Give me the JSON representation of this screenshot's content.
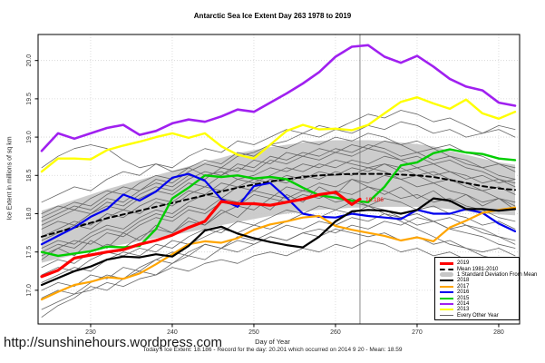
{
  "title": "Antarctic Sea Ice Extent Day 263 1978 to 2019",
  "url": "http://sunshinehours.wordpress.com",
  "xlabel": "Day of Year",
  "ylabel": "Ice Extent in millions of sq km",
  "caption": "Today's Ice Extent: 18.186  - Record for the day: 20.201 which occurred on 2014 9 20  - Mean: 18.59",
  "today_point_label": "18.186",
  "colors": {
    "y2019": "#ff0000",
    "mean": "#000000",
    "band": "#c6c6c6",
    "y2018": "#000000",
    "y2017": "#ffa500",
    "y2016": "#0000ee",
    "y2015": "#00cd00",
    "y2014": "#a020f0",
    "y2013": "#ffff00",
    "other": "#676767",
    "grid": "#d4d4d4",
    "marker": "#8a8a8a",
    "axis": "#000000"
  },
  "legend": {
    "items": [
      {
        "label": "2019",
        "style": "thick",
        "color": "#ff0000"
      },
      {
        "label": "Mean 1981-2010",
        "style": "dashed",
        "color": "#000000"
      },
      {
        "label": "1 Standard Deviation From Mean",
        "style": "band",
        "color": "#c6c6c6"
      },
      {
        "label": "2018",
        "style": "line",
        "color": "#000000"
      },
      {
        "label": "2017",
        "style": "line",
        "color": "#ffa500"
      },
      {
        "label": "2016",
        "style": "line",
        "color": "#0000ee"
      },
      {
        "label": "2015",
        "style": "line",
        "color": "#00cd00"
      },
      {
        "label": "2014",
        "style": "line",
        "color": "#a020f0"
      },
      {
        "label": "2013",
        "style": "line",
        "color": "#ffff00"
      },
      {
        "label": "Every Other Year",
        "style": "thin",
        "color": "#676767"
      }
    ]
  },
  "chart_data": {
    "type": "line",
    "title": "Antarctic Sea Ice Extent Day 263 1978 to 2019",
    "xlabel": "Day of Year",
    "ylabel": "Ice Extent in millions of sq km",
    "xlim": [
      223.56,
      282.56
    ],
    "ylim": [
      16.56,
      20.34
    ],
    "xticks": [
      230,
      240,
      250,
      260,
      270,
      280
    ],
    "yticks": [
      17.0,
      17.5,
      18.0,
      18.5,
      19.0,
      19.5,
      20.0
    ],
    "grid": true,
    "marker_day": 263,
    "x": [
      224,
      226,
      228,
      230,
      232,
      234,
      236,
      238,
      240,
      242,
      244,
      246,
      248,
      250,
      252,
      254,
      256,
      258,
      260,
      262,
      264,
      266,
      268,
      270,
      272,
      274,
      276,
      278,
      280,
      282
    ],
    "band": {
      "name": "1 Standard Deviation From Mean",
      "upper": [
        18.04,
        18.11,
        18.18,
        18.25,
        18.32,
        18.38,
        18.44,
        18.5,
        18.56,
        18.62,
        18.68,
        18.73,
        18.79,
        18.83,
        18.87,
        18.9,
        18.93,
        18.95,
        18.96,
        18.96,
        18.96,
        18.95,
        18.93,
        18.91,
        18.88,
        18.82,
        18.77,
        18.72,
        18.67,
        18.64
      ],
      "lower": [
        17.36,
        17.41,
        17.46,
        17.51,
        17.56,
        17.6,
        17.64,
        17.68,
        17.72,
        17.76,
        17.8,
        17.85,
        17.89,
        17.93,
        17.97,
        18.0,
        18.03,
        18.05,
        18.06,
        18.08,
        18.08,
        18.09,
        18.09,
        18.09,
        18.08,
        18.06,
        18.03,
        18.0,
        17.99,
        17.98
      ]
    },
    "series": [
      {
        "name": "Mean 1981-2010",
        "color": "#000000",
        "width": 2,
        "dash": "5,4",
        "values": [
          17.7,
          17.76,
          17.82,
          17.88,
          17.94,
          17.99,
          18.04,
          18.09,
          18.14,
          18.19,
          18.24,
          18.29,
          18.34,
          18.38,
          18.42,
          18.45,
          18.48,
          18.5,
          18.51,
          18.52,
          18.52,
          18.52,
          18.51,
          18.5,
          18.48,
          18.44,
          18.4,
          18.36,
          18.33,
          18.31
        ]
      },
      {
        "name": "2013",
        "color": "#ffff00",
        "width": 2.4,
        "values": [
          18.55,
          18.72,
          18.72,
          18.71,
          18.83,
          18.89,
          18.94,
          19.0,
          19.05,
          18.99,
          19.05,
          18.88,
          18.77,
          18.72,
          18.9,
          19.08,
          19.16,
          19.1,
          19.11,
          19.09,
          19.16,
          19.31,
          19.46,
          19.52,
          19.44,
          19.37,
          19.49,
          19.31,
          19.24,
          19.33
        ]
      },
      {
        "name": "2014",
        "color": "#a020f0",
        "width": 2.6,
        "values": [
          18.82,
          19.05,
          18.98,
          19.05,
          19.12,
          19.16,
          19.03,
          19.08,
          19.18,
          19.23,
          19.2,
          19.27,
          19.36,
          19.33,
          19.45,
          19.57,
          19.7,
          19.85,
          20.05,
          20.18,
          20.2,
          20.05,
          19.97,
          20.06,
          19.92,
          19.76,
          19.66,
          19.61,
          19.45,
          19.41
        ]
      },
      {
        "name": "2015",
        "color": "#00cd00",
        "width": 2.4,
        "values": [
          17.5,
          17.45,
          17.48,
          17.51,
          17.57,
          17.56,
          17.58,
          17.8,
          18.2,
          18.34,
          18.5,
          18.48,
          18.5,
          18.46,
          18.48,
          18.45,
          18.34,
          18.24,
          18.21,
          18.17,
          18.15,
          18.35,
          18.63,
          18.67,
          18.79,
          18.84,
          18.8,
          18.78,
          18.72,
          18.7
        ]
      },
      {
        "name": "2016",
        "color": "#0000ee",
        "width": 2.2,
        "values": [
          17.6,
          17.71,
          17.82,
          17.96,
          18.06,
          18.25,
          18.17,
          18.29,
          18.47,
          18.52,
          18.43,
          18.19,
          18.09,
          18.36,
          18.4,
          18.21,
          18.0,
          17.96,
          17.95,
          18.0,
          17.97,
          17.95,
          17.93,
          18.05,
          18.0,
          18.0,
          18.06,
          18.01,
          17.87,
          17.77
        ]
      },
      {
        "name": "2017",
        "color": "#ffa500",
        "width": 2.2,
        "values": [
          16.88,
          16.98,
          17.07,
          17.11,
          17.17,
          17.15,
          17.22,
          17.34,
          17.47,
          17.6,
          17.64,
          17.62,
          17.68,
          17.79,
          17.86,
          17.9,
          17.95,
          17.97,
          17.84,
          17.79,
          17.75,
          17.71,
          17.65,
          17.69,
          17.64,
          17.82,
          17.91,
          18.01,
          18.05,
          18.08
        ]
      },
      {
        "name": "2018",
        "color": "#000000",
        "width": 2.2,
        "values": [
          17.07,
          17.16,
          17.25,
          17.31,
          17.4,
          17.44,
          17.43,
          17.47,
          17.44,
          17.58,
          17.78,
          17.83,
          17.74,
          17.68,
          17.63,
          17.59,
          17.56,
          17.7,
          17.9,
          18.03,
          18.05,
          18.04,
          18.0,
          18.05,
          18.2,
          18.17,
          18.06,
          18.06,
          18.04,
          18.06
        ]
      },
      {
        "name": "2019",
        "color": "#ff0000",
        "width": 3.2,
        "x": [
          224,
          226,
          228,
          230,
          232,
          234,
          236,
          238,
          240,
          242,
          244,
          246,
          248,
          250,
          252,
          254,
          256,
          258,
          260,
          262,
          263
        ],
        "values": [
          17.18,
          17.26,
          17.42,
          17.46,
          17.5,
          17.53,
          17.6,
          17.65,
          17.72,
          17.82,
          17.9,
          18.16,
          18.13,
          18.13,
          18.11,
          18.15,
          18.19,
          18.25,
          18.28,
          18.12,
          18.19
        ]
      }
    ],
    "background_series": {
      "name": "Every Other Year",
      "color": "#676767",
      "width": 0.8,
      "lines": [
        [
          16.75,
          16.85,
          16.95,
          17.0,
          17.1,
          17.05,
          17.15,
          17.2,
          17.3,
          17.25,
          17.35,
          17.4,
          17.35,
          17.45,
          17.5,
          17.45,
          17.55,
          17.5,
          17.6,
          17.55,
          17.65,
          17.6,
          17.5,
          17.55,
          17.45,
          17.5,
          17.4,
          17.35,
          17.3,
          17.25
        ],
        [
          16.9,
          17.0,
          16.95,
          17.1,
          17.2,
          17.15,
          17.3,
          17.4,
          17.35,
          17.5,
          17.6,
          17.55,
          17.7,
          17.65,
          17.75,
          17.85,
          17.8,
          17.9,
          17.85,
          17.95,
          17.9,
          18.0,
          17.95,
          17.85,
          17.9,
          17.8,
          17.75,
          17.7,
          17.6,
          17.55
        ],
        [
          17.1,
          17.2,
          17.3,
          17.25,
          17.4,
          17.5,
          17.45,
          17.6,
          17.55,
          17.7,
          17.8,
          17.75,
          17.9,
          17.85,
          17.95,
          18.05,
          18.0,
          18.1,
          18.05,
          18.15,
          18.1,
          18.2,
          18.15,
          18.05,
          18.1,
          18.0,
          17.95,
          17.85,
          17.9,
          17.8
        ],
        [
          17.3,
          17.4,
          17.35,
          17.5,
          17.6,
          17.55,
          17.7,
          17.8,
          17.75,
          17.9,
          17.85,
          18.0,
          18.1,
          18.05,
          18.2,
          18.15,
          18.25,
          18.2,
          18.3,
          18.25,
          18.35,
          18.3,
          18.2,
          18.25,
          18.15,
          18.2,
          18.1,
          18.05,
          17.95,
          17.9
        ],
        [
          17.45,
          17.55,
          17.65,
          17.6,
          17.75,
          17.7,
          17.85,
          17.95,
          17.9,
          18.05,
          18.0,
          18.15,
          18.1,
          18.25,
          18.2,
          18.35,
          18.3,
          18.4,
          18.35,
          18.45,
          18.4,
          18.5,
          18.45,
          18.35,
          18.4,
          18.3,
          18.25,
          18.15,
          18.2,
          18.1
        ],
        [
          17.55,
          17.65,
          17.6,
          17.75,
          17.85,
          17.8,
          17.95,
          18.05,
          18.0,
          18.15,
          18.25,
          18.2,
          18.35,
          18.3,
          18.45,
          18.4,
          18.5,
          18.45,
          18.55,
          18.5,
          18.6,
          18.55,
          18.45,
          18.5,
          18.4,
          18.45,
          18.35,
          18.3,
          18.2,
          18.15
        ],
        [
          17.65,
          17.75,
          17.85,
          17.8,
          17.95,
          18.05,
          18.0,
          18.15,
          18.1,
          18.25,
          18.35,
          18.3,
          18.45,
          18.4,
          18.5,
          18.6,
          18.55,
          18.65,
          18.6,
          18.7,
          18.65,
          18.75,
          18.7,
          18.6,
          18.65,
          18.55,
          18.5,
          18.4,
          18.45,
          18.35
        ],
        [
          17.8,
          17.9,
          17.85,
          18.0,
          18.1,
          18.05,
          18.2,
          18.3,
          18.25,
          18.4,
          18.35,
          18.5,
          18.6,
          18.55,
          18.7,
          18.65,
          18.75,
          18.7,
          18.8,
          18.75,
          18.85,
          18.8,
          18.7,
          18.75,
          18.65,
          18.7,
          18.6,
          18.55,
          18.45,
          18.4
        ],
        [
          17.9,
          18.0,
          18.1,
          18.05,
          18.2,
          18.15,
          18.3,
          18.4,
          18.35,
          18.5,
          18.45,
          18.6,
          18.55,
          18.7,
          18.65,
          18.8,
          18.75,
          18.85,
          18.8,
          18.9,
          18.85,
          18.95,
          18.9,
          18.8,
          18.85,
          18.75,
          18.7,
          18.6,
          18.65,
          18.55
        ],
        [
          18.0,
          18.1,
          18.05,
          18.2,
          18.3,
          18.25,
          18.4,
          18.5,
          18.45,
          18.6,
          18.7,
          18.65,
          18.8,
          18.75,
          18.9,
          18.85,
          18.95,
          18.9,
          19.0,
          18.95,
          19.05,
          19.0,
          18.9,
          18.95,
          18.85,
          18.9,
          18.8,
          18.75,
          18.65,
          18.6
        ],
        [
          18.15,
          18.25,
          18.35,
          18.3,
          18.45,
          18.55,
          18.5,
          18.65,
          18.6,
          18.75,
          18.85,
          18.8,
          18.95,
          18.9,
          19.0,
          19.1,
          19.05,
          19.15,
          19.1,
          19.2,
          19.3,
          19.25,
          19.35,
          19.3,
          19.2,
          19.25,
          19.15,
          19.05,
          19.1,
          19.0
        ],
        [
          18.6,
          18.75,
          18.85,
          18.9,
          18.85,
          18.7,
          18.6,
          18.65,
          18.55,
          18.6,
          18.5,
          18.55,
          18.45,
          18.5,
          18.6,
          18.55,
          18.65,
          18.6,
          18.7,
          18.65,
          18.6,
          18.65,
          18.55,
          18.6,
          18.5,
          18.55,
          18.45,
          18.5,
          18.4,
          18.45
        ],
        [
          17.0,
          17.1,
          17.05,
          17.2,
          17.15,
          17.3,
          17.25,
          17.4,
          17.5,
          17.45,
          17.6,
          17.55,
          17.65,
          17.6,
          17.7,
          17.65,
          17.75,
          17.7,
          17.8,
          17.75,
          17.7,
          17.75,
          17.65,
          17.7,
          17.6,
          17.65,
          17.55,
          17.5,
          17.55,
          17.45
        ],
        [
          17.2,
          17.3,
          17.25,
          17.4,
          17.5,
          17.45,
          17.55,
          17.5,
          17.65,
          17.6,
          17.7,
          17.8,
          17.75,
          17.85,
          17.8,
          17.9,
          18.0,
          17.95,
          18.05,
          18.0,
          18.1,
          18.05,
          17.95,
          18.0,
          17.9,
          17.95,
          17.85,
          17.8,
          17.7,
          17.65
        ],
        [
          17.7,
          17.8,
          17.9,
          17.85,
          18.0,
          17.95,
          18.1,
          18.2,
          18.15,
          18.3,
          18.25,
          18.4,
          18.35,
          18.45,
          18.4,
          18.5,
          18.45,
          18.55,
          18.5,
          18.6,
          18.55,
          18.65,
          18.6,
          18.5,
          18.55,
          18.45,
          18.4,
          18.3,
          18.35,
          18.25
        ],
        [
          17.85,
          17.95,
          18.05,
          18.0,
          18.15,
          18.1,
          18.25,
          18.35,
          18.3,
          18.45,
          18.55,
          18.5,
          18.65,
          18.6,
          18.75,
          18.7,
          18.8,
          18.75,
          18.85,
          18.8,
          18.9,
          18.85,
          18.75,
          18.8,
          18.7,
          18.75,
          18.65,
          18.6,
          18.5,
          18.45
        ],
        [
          17.5,
          17.6,
          17.55,
          17.7,
          17.8,
          17.75,
          17.9,
          18.0,
          17.95,
          18.1,
          18.05,
          18.2,
          18.15,
          18.3,
          18.25,
          18.2,
          18.3,
          18.25,
          18.15,
          18.2,
          18.1,
          18.0,
          17.9,
          17.8,
          17.7,
          17.6,
          17.55,
          17.45,
          17.4,
          17.3
        ],
        [
          17.95,
          18.05,
          18.15,
          18.1,
          18.25,
          18.35,
          18.3,
          18.45,
          18.4,
          18.55,
          18.65,
          18.6,
          18.75,
          18.8,
          18.9,
          18.95,
          19.05,
          19.0,
          19.1,
          19.05,
          19.15,
          19.1,
          19.2,
          19.15,
          19.05,
          19.1,
          19.0,
          19.05,
          19.15,
          19.1
        ],
        [
          16.65,
          16.8,
          16.9,
          17.05,
          17.0,
          17.15,
          17.25,
          17.2,
          17.35,
          17.45,
          17.4,
          17.55,
          17.5,
          17.6,
          17.7,
          17.65,
          17.75,
          17.8,
          17.75,
          17.85,
          17.8,
          17.9,
          17.85,
          17.95,
          17.9,
          17.8,
          17.85,
          17.75,
          17.7,
          17.6
        ],
        [
          17.4,
          17.55,
          17.45,
          17.65,
          17.55,
          17.75,
          17.65,
          17.85,
          17.75,
          17.95,
          17.85,
          18.05,
          17.95,
          18.15,
          18.05,
          18.25,
          18.15,
          18.35,
          18.25,
          18.45,
          18.35,
          18.25,
          18.35,
          18.2,
          18.3,
          18.15,
          18.25,
          18.1,
          18.2,
          18.05
        ]
      ]
    }
  }
}
